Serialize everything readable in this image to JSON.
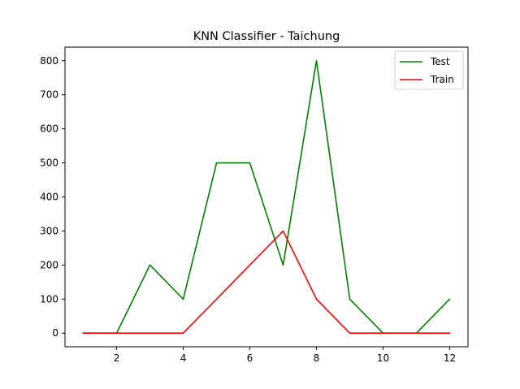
{
  "chart_data": {
    "type": "line",
    "title": "KNN Classifier - Taichung",
    "xlabel": "",
    "ylabel": "",
    "x": [
      1,
      2,
      3,
      4,
      5,
      6,
      7,
      8,
      9,
      10,
      11,
      12
    ],
    "xlim": [
      0.45,
      12.55
    ],
    "ylim": [
      -40,
      840
    ],
    "xticks": [
      2,
      4,
      6,
      8,
      10,
      12
    ],
    "yticks": [
      0,
      100,
      200,
      300,
      400,
      500,
      600,
      700,
      800
    ],
    "grid": false,
    "legend_position": "top-right",
    "series": [
      {
        "name": "Test",
        "color": "#008000",
        "values": [
          0,
          0,
          200,
          100,
          500,
          500,
          200,
          800,
          100,
          0,
          0,
          100
        ]
      },
      {
        "name": "Train",
        "color": "#ff0000",
        "values": [
          0,
          0,
          0,
          0,
          100,
          200,
          300,
          100,
          0,
          0,
          0,
          0
        ]
      }
    ]
  }
}
